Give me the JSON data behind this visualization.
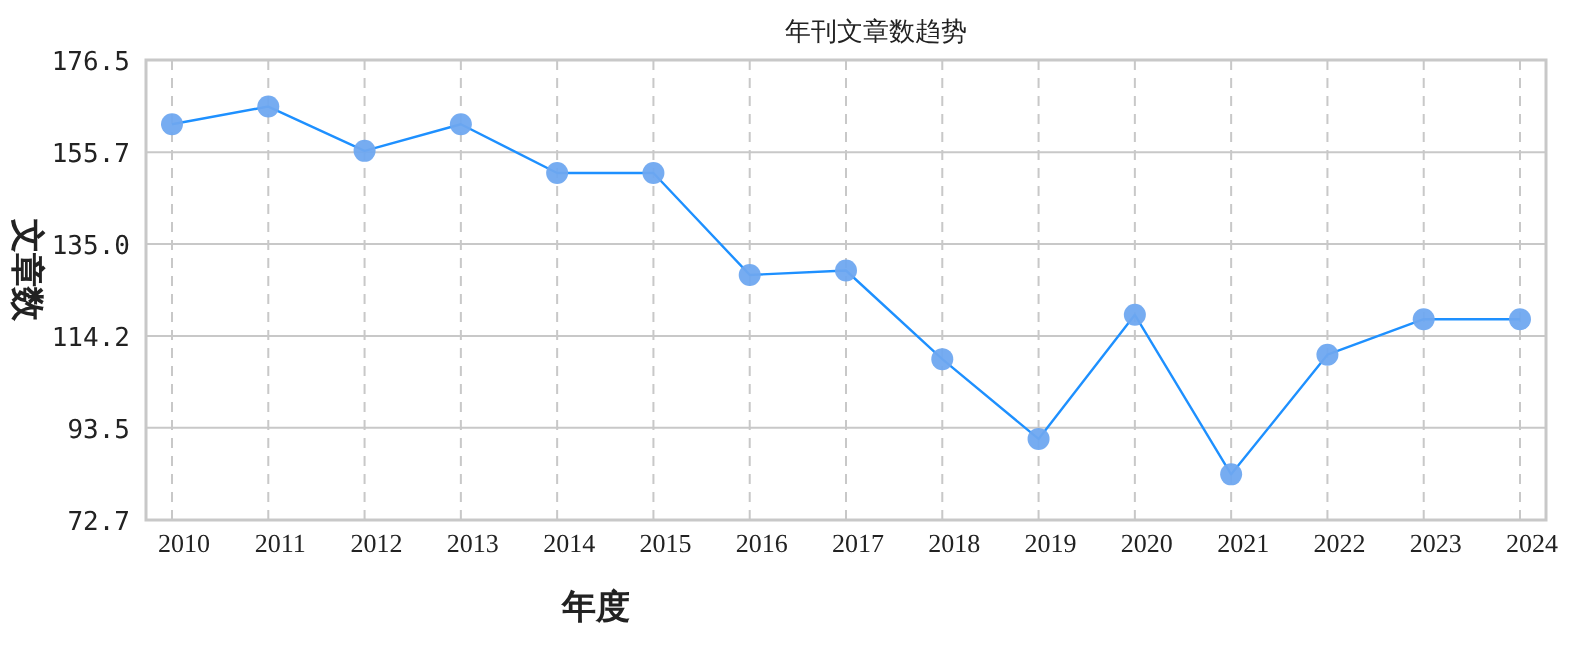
{
  "chart_data": {
    "type": "line",
    "title": "年刊文章数趋势",
    "xlabel": "年度",
    "ylabel": "文章数",
    "categories": [
      "2010",
      "2011",
      "2012",
      "2013",
      "2014",
      "2015",
      "2016",
      "2017",
      "2018",
      "2019",
      "2020",
      "2021",
      "2022",
      "2023",
      "2024"
    ],
    "series": [
      {
        "color": "#1e90ff",
        "values": [
          162,
          166,
          156,
          162,
          151,
          151,
          128,
          129,
          109,
          91,
          119,
          83,
          110,
          118,
          118
        ]
      }
    ],
    "ylim": [
      72.7,
      176.5
    ],
    "yticks": [
      72.7,
      93.5,
      114.2,
      {
        "value": 135.0,
        "label": "135.0"
      },
      155.7,
      176.5
    ],
    "grid": true,
    "marker": "circle",
    "line_style": "solid"
  }
}
